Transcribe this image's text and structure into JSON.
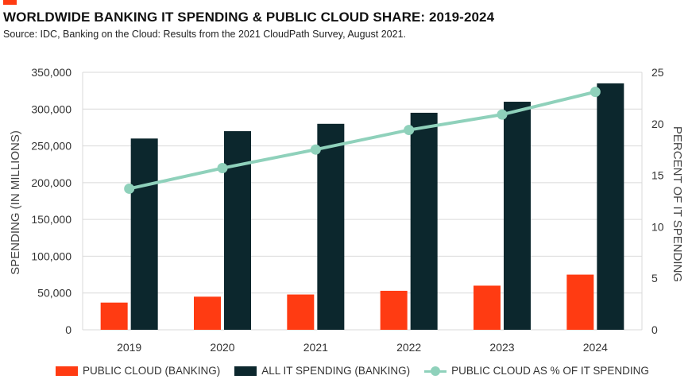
{
  "header": {
    "title": "WORLDWIDE BANKING IT SPENDING & PUBLIC CLOUD SHARE: 2019-2024",
    "subtitle": "Source: IDC, Banking on the Cloud: Results from the 2021 CloudPath Survey, August 2021."
  },
  "colors": {
    "accent": "#ff3b12",
    "public_cloud": "#ff3b12",
    "all_it": "#0c272d",
    "line": "#8fd1bb",
    "grid": "#d9d9d9"
  },
  "chart_data": {
    "type": "bar",
    "categories": [
      "2019",
      "2020",
      "2021",
      "2022",
      "2023",
      "2024"
    ],
    "series": [
      {
        "name": "PUBLIC CLOUD (BANKING)",
        "kind": "bar",
        "axis": "left",
        "values": [
          37000,
          45000,
          48000,
          53000,
          60000,
          75000
        ]
      },
      {
        "name": "ALL IT SPENDING (BANKING)",
        "kind": "bar",
        "axis": "left",
        "values": [
          260000,
          270000,
          280000,
          295000,
          310000,
          335000
        ]
      },
      {
        "name": "PUBLIC CLOUD AS % OF IT SPENDING",
        "kind": "line",
        "axis": "right",
        "values": [
          13.7,
          15.7,
          17.5,
          19.4,
          20.9,
          23.1
        ]
      }
    ],
    "ylabel": "SPENDING (IN MILLIONS)",
    "y2label": "PERCENT OF IT SPENDING",
    "ylim": [
      0,
      350000
    ],
    "y2lim": [
      0,
      25
    ],
    "yticks": [
      "0",
      "50,000",
      "100,000",
      "150,000",
      "200,000",
      "250,000",
      "300,000",
      "350,000"
    ],
    "y2ticks": [
      "0",
      "5",
      "10",
      "15",
      "20",
      "25"
    ],
    "grid": true,
    "legend_position": "bottom"
  }
}
